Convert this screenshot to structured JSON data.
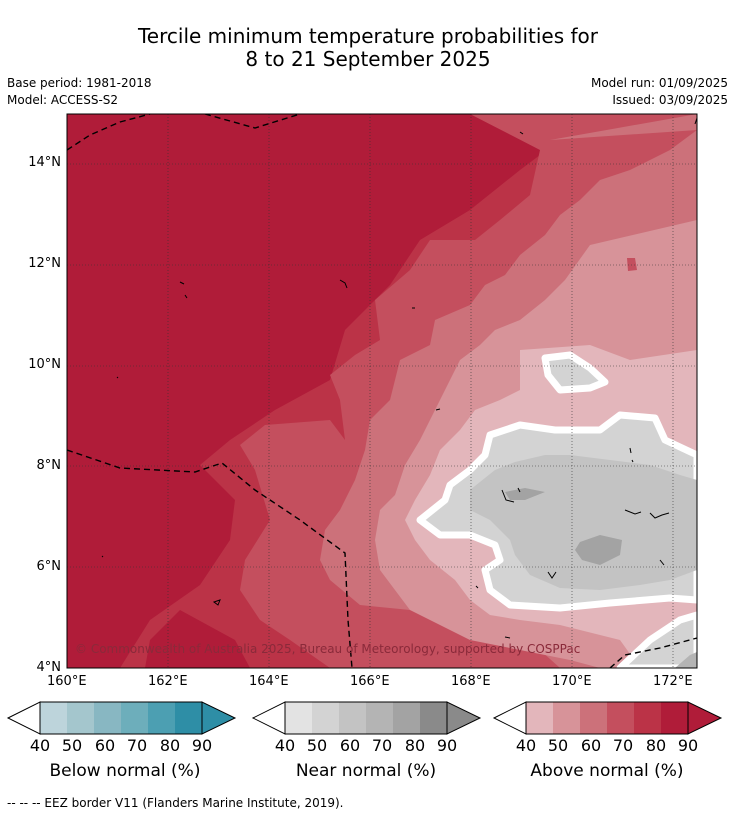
{
  "title": {
    "line1": "Tercile minimum temperature probabilities for",
    "line2": "8 to 21 September 2025"
  },
  "meta": {
    "base_period": "Base period: 1981-2018",
    "model": "Model: ACCESS-S2",
    "model_run": "Model run: 01/09/2025",
    "issued": "Issued: 03/09/2025"
  },
  "map": {
    "y_ticks": [
      "14°N",
      "12°N",
      "10°N",
      "8°N",
      "6°N",
      "4°N"
    ],
    "x_ticks": [
      "160°E",
      "162°E",
      "164°E",
      "166°E",
      "168°E",
      "170°E",
      "172°E"
    ],
    "copyright": "© Commonwealth of Australia 2025, Bureau of Meteorology, supported by COSPPac"
  },
  "colorbars": [
    {
      "label": "Below normal (%)",
      "ticks": [
        "40",
        "50",
        "60",
        "70",
        "80",
        "90"
      ],
      "colors": [
        "#bdd4db",
        "#a4c6cd",
        "#88b7c2",
        "#6daebb",
        "#4c9fb2",
        "#2e8ea6"
      ]
    },
    {
      "label": "Near normal (%)",
      "ticks": [
        "40",
        "50",
        "60",
        "70",
        "80",
        "90"
      ],
      "colors": [
        "#e3e3e3",
        "#d3d3d3",
        "#c3c3c3",
        "#b4b4b4",
        "#a3a3a3",
        "#8a8a8a"
      ]
    },
    {
      "label": "Above normal (%)",
      "ticks": [
        "40",
        "50",
        "60",
        "70",
        "80",
        "90"
      ],
      "colors": [
        "#e3b6bb",
        "#d79399",
        "#cc717a",
        "#c44f5e",
        "#bb3347",
        "#b01c39"
      ]
    }
  ],
  "footer": "--  --  -- EEZ border V11 (Flanders Marine Institute, 2019)."
}
